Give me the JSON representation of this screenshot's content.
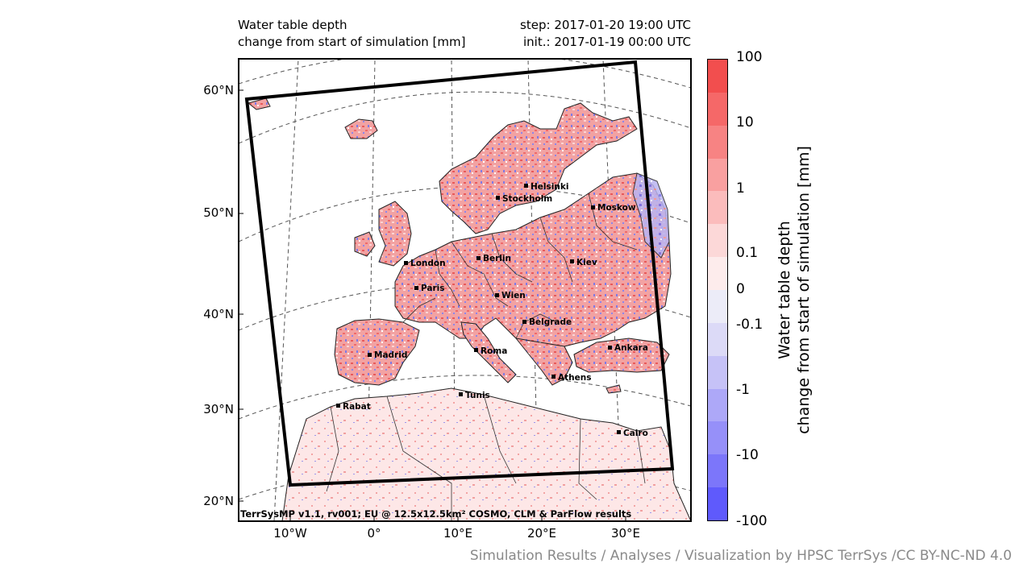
{
  "header": {
    "title_line1": "Water table depth",
    "title_line2": "change from start of simulation [mm]",
    "step": "step: 2017-01-20 19:00 UTC",
    "init": "init.: 2017-01-19 00:00 UTC"
  },
  "lat_labels": [
    "60°N",
    "50°N",
    "40°N",
    "30°N",
    "20°N"
  ],
  "lon_labels": [
    "10°W",
    "0°",
    "10°E",
    "20°E",
    "30°E"
  ],
  "cities": [
    {
      "name": "Helsinki"
    },
    {
      "name": "Stockholm"
    },
    {
      "name": "Moskow"
    },
    {
      "name": "London"
    },
    {
      "name": "Berlin"
    },
    {
      "name": "Kiev"
    },
    {
      "name": "Paris"
    },
    {
      "name": "Wien"
    },
    {
      "name": "Belgrade"
    },
    {
      "name": "Madrid"
    },
    {
      "name": "Roma"
    },
    {
      "name": "Ankara"
    },
    {
      "name": "Athens"
    },
    {
      "name": "Tunis"
    },
    {
      "name": "Rabat"
    },
    {
      "name": "Cairo"
    }
  ],
  "colorbar": {
    "title_line1": "Water table depth",
    "title_line2": "change from start of simulation [mm]",
    "ticks": [
      "100",
      "10",
      "1",
      "0.1",
      "0",
      "-0.1",
      "-1",
      "-10",
      "-100"
    ],
    "colors": [
      "#f24e4e",
      "#f56868",
      "#f78383",
      "#f9a0a0",
      "#fbbcbc",
      "#fcd8d8",
      "#fdecec",
      "#ececf8",
      "#dcdaf7",
      "#c6c2f7",
      "#ada8f8",
      "#9690f9",
      "#7c76fa",
      "#5f5afc"
    ]
  },
  "model_label": "TerrSysMP v1.1, rv001; EU @ 12.5x12.5km² COSMO, CLM & ParFlow results",
  "credit": "Simulation Results / Analyses / Visualization by HPSC TerrSys /CC BY-NC-ND 4.0"
}
